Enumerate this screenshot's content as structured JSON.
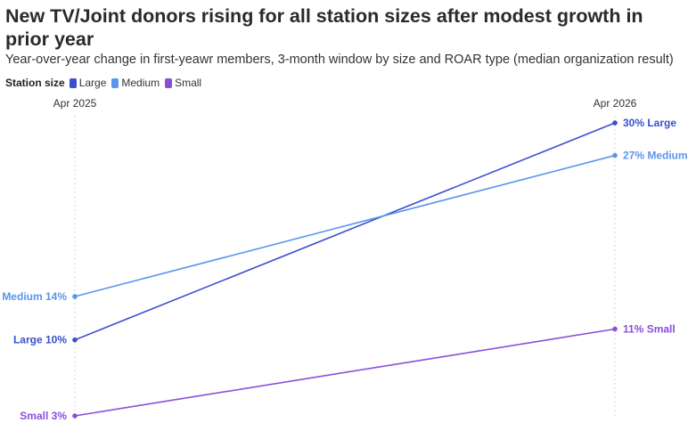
{
  "chart_data": {
    "type": "line",
    "title": "New TV/Joint donors rising for all station sizes after modest growth in prior year",
    "subtitle": "Year-over-year change in first-yeawr members, 3-month window by size and ROAR type (median organization result)",
    "x": [
      "Apr 2025",
      "Apr 2026"
    ],
    "legend_title": "Station size",
    "legend_placement": "top-left",
    "grid": false,
    "series": [
      {
        "name": "Large",
        "values": [
          10,
          30
        ],
        "color": "#3b4fcf",
        "start_label": "Large 10%",
        "end_label": "30% Large"
      },
      {
        "name": "Medium",
        "values": [
          14,
          27
        ],
        "color": "#5b95ec",
        "start_label": "Medium 14%",
        "end_label": "27% Medium"
      },
      {
        "name": "Small",
        "values": [
          3,
          11
        ],
        "color": "#8a4fd8",
        "start_label": "Small 3%",
        "end_label": "11% Small"
      }
    ]
  }
}
